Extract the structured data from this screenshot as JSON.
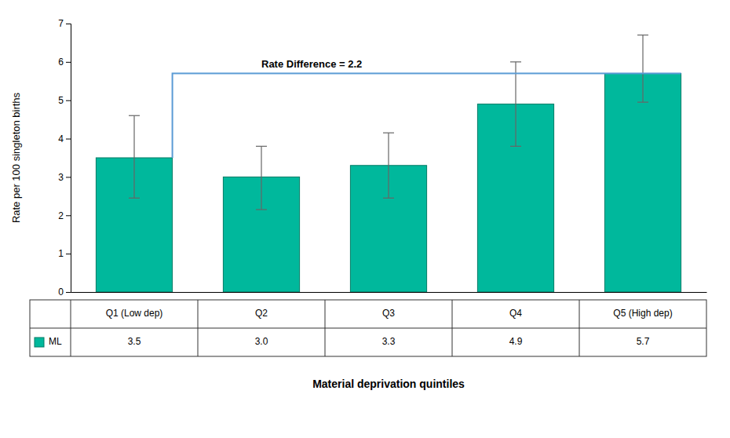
{
  "chart_data": {
    "type": "bar",
    "categories": [
      "Q1 (Low dep)",
      "Q2",
      "Q3",
      "Q4",
      "Q5 (High dep)"
    ],
    "values": [
      3.5,
      3.0,
      3.3,
      4.9,
      5.7
    ],
    "value_labels": [
      "3.5",
      "3.0",
      "3.3",
      "4.9",
      "5.7"
    ],
    "errors_upper": [
      1.1,
      0.8,
      0.85,
      1.1,
      1.0
    ],
    "errors_lower": [
      1.05,
      0.85,
      0.85,
      1.1,
      0.75
    ],
    "color": "#00B89C",
    "edge_color": "#007A65",
    "error_color": "#666666",
    "ylabel": "Rate per 100 singleton births",
    "xlabel": "Material deprivation quintiles",
    "ylim": [
      0,
      7
    ],
    "yticks": [
      0,
      1,
      2,
      3,
      4,
      5,
      6,
      7
    ],
    "grid": false,
    "tick_labels": "y",
    "rate_difference": {
      "label": "Rate Difference = 2.2",
      "from": 3.5,
      "to": 5.7,
      "color": "#5B9BD5"
    },
    "table_row_label": "ML"
  }
}
